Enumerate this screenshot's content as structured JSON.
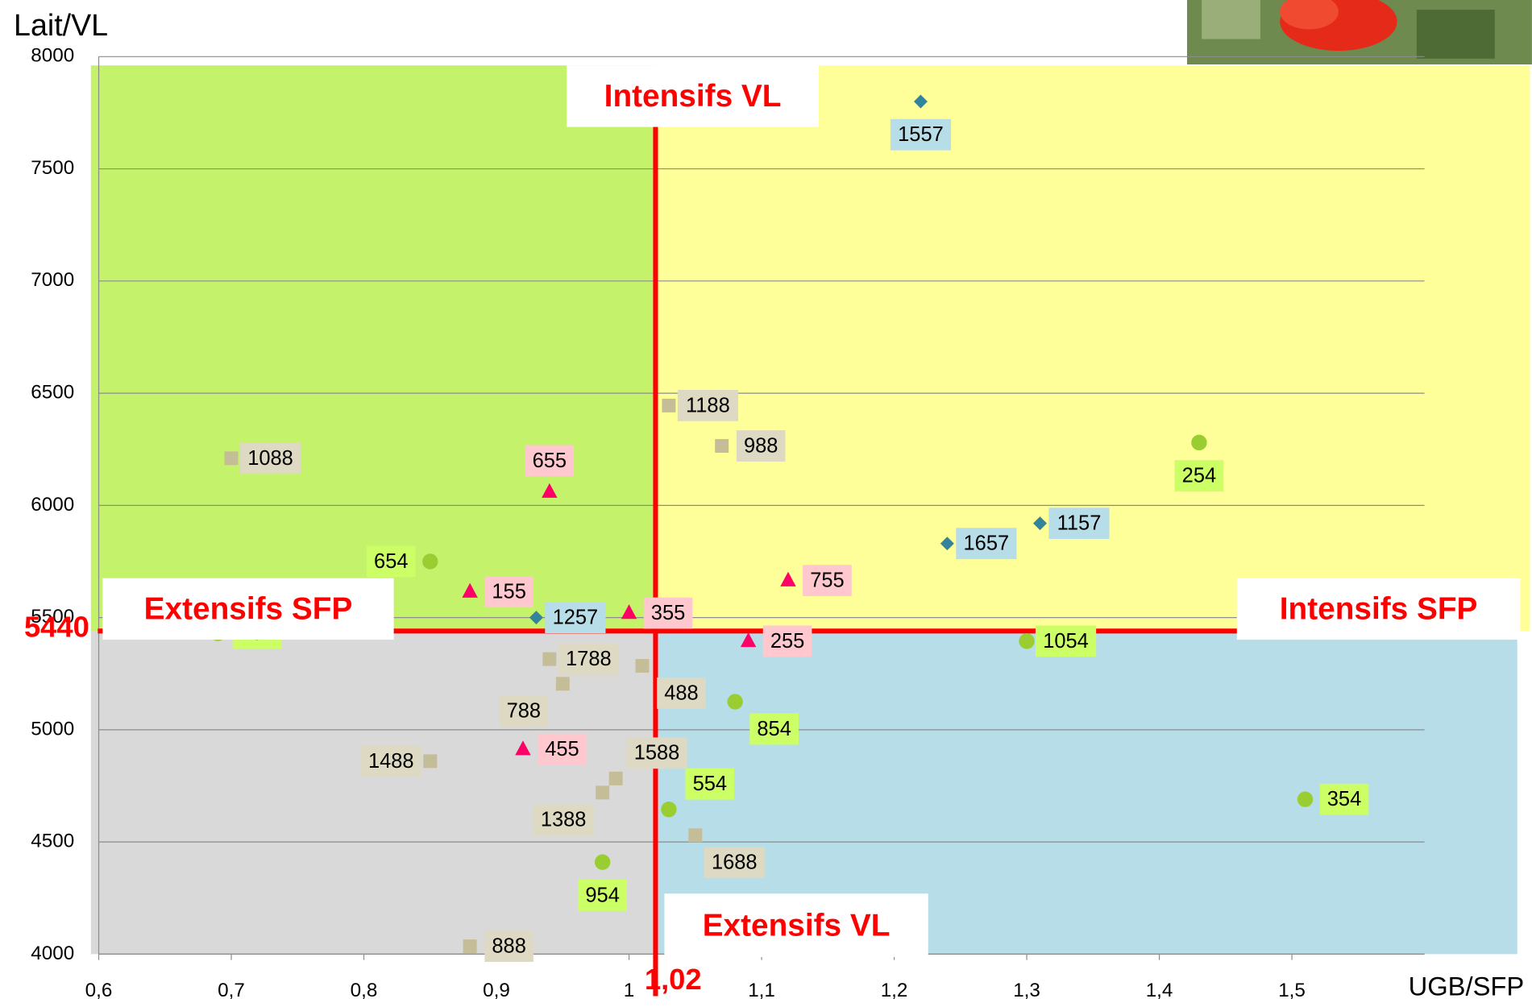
{
  "chart_data": {
    "type": "scatter",
    "ylabel": "Lait/VL",
    "xlabel": "UGB/SFP",
    "xlim": [
      0.6,
      1.6
    ],
    "ylim": [
      4000,
      8000
    ],
    "xticks": [
      {
        "value": 0.6,
        "label": "0,6"
      },
      {
        "value": 0.7,
        "label": "0,7"
      },
      {
        "value": 0.8,
        "label": "0,8"
      },
      {
        "value": 0.9,
        "label": "0,9"
      },
      1,
      {
        "value": 1.1,
        "label": "1,1"
      },
      {
        "value": 1.2,
        "label": "1,2"
      },
      {
        "value": 1.3,
        "label": "1,3"
      },
      {
        "value": 1.4,
        "label": "1,4"
      },
      {
        "value": 1.5,
        "label": "1,5"
      }
    ],
    "yticks": [
      4000,
      4500,
      5000,
      5500,
      6000,
      6500,
      7000,
      7500,
      8000
    ],
    "grid": true,
    "x_threshold": {
      "value": 1.02,
      "label": "1,02"
    },
    "y_threshold": {
      "value": 5440,
      "label": "5440"
    },
    "annotations": [
      "Intensifs VL",
      "Extensifs VL",
      "Extensifs SFP",
      "Intensifs SFP"
    ],
    "series": [
      {
        "marker": "diamond",
        "color": "#31849b",
        "label_color": "#b7dde8",
        "x": [
          1.22,
          1.31,
          1.24,
          0.93
        ],
        "values": [
          7800,
          5920,
          5830,
          5500
        ],
        "labels": [
          "1557",
          "1157",
          "1657",
          "1257"
        ]
      },
      {
        "marker": "square",
        "color": "#c4bd97",
        "label_color": "#ddd9c3",
        "x": [
          0.7,
          1.03,
          1.07,
          0.94,
          1.01,
          0.95,
          0.85,
          0.99,
          0.98,
          1.05,
          0.88
        ],
        "values": [
          6210,
          6445,
          6265,
          5315,
          5285,
          5205,
          4860,
          4783,
          4720,
          4530,
          4035
        ],
        "labels": [
          "1088",
          "1188",
          "988",
          "1788",
          "488",
          "788",
          "1488",
          "1588",
          "1388",
          "1688",
          "888"
        ]
      },
      {
        "marker": "triangle",
        "color": "#ff0066",
        "label_color": "#ffc7ce",
        "x": [
          0.94,
          0.88,
          1.0,
          1.12,
          1.09,
          0.92
        ],
        "values": [
          6060,
          5615,
          5520,
          5665,
          5395,
          4913
        ],
        "labels": [
          "655",
          "155",
          "355",
          "755",
          "255",
          "455"
        ]
      },
      {
        "marker": "circle",
        "color": "#9acd32",
        "label_color": "#ccff66",
        "x": [
          0.85,
          0.69,
          1.43,
          1.3,
          1.08,
          1.03,
          1.51,
          0.98
        ],
        "values": [
          5750,
          5430,
          6280,
          5395,
          5125,
          4645,
          4690,
          4410
        ],
        "labels": [
          "654",
          "754",
          "254",
          "1054",
          "854",
          "554",
          "354",
          "954"
        ]
      }
    ]
  }
}
